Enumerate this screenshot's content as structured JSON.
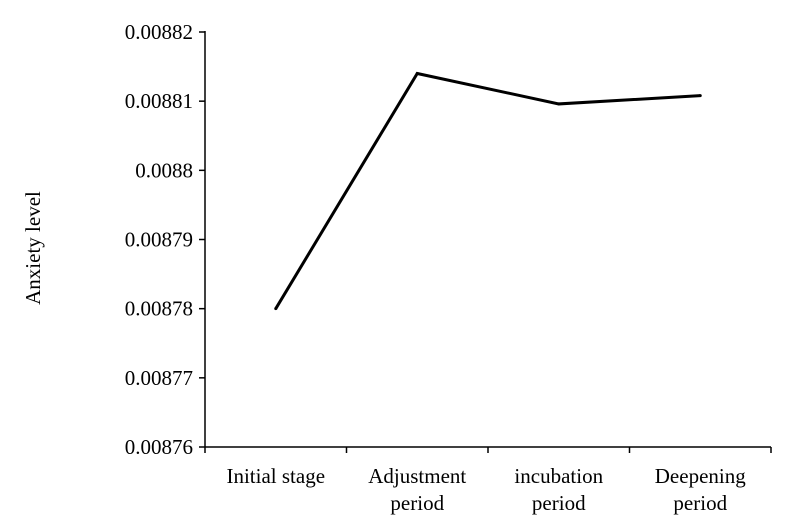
{
  "chart_data": {
    "type": "line",
    "title": "",
    "xlabel": "",
    "ylabel": "Anxiety level",
    "categories": [
      [
        "Initial stage"
      ],
      [
        "Adjustment",
        "period"
      ],
      [
        "incubation",
        "period"
      ],
      [
        "Deepening",
        "period"
      ]
    ],
    "series": [
      {
        "values": [
          0.00878,
          0.008814,
          0.0088096,
          0.0088108
        ],
        "color": "#000000"
      }
    ],
    "ylim": [
      0.00876,
      0.00882
    ],
    "yticks": [
      0.00876,
      0.00877,
      0.00878,
      0.00879,
      0.0088,
      0.00881,
      0.00882
    ],
    "ytick_labels": [
      "0.00876",
      "0.00877",
      "0.00878",
      "0.00879",
      "0.0088",
      "0.00881",
      "0.00882"
    ],
    "grid": false,
    "legend": "none"
  }
}
